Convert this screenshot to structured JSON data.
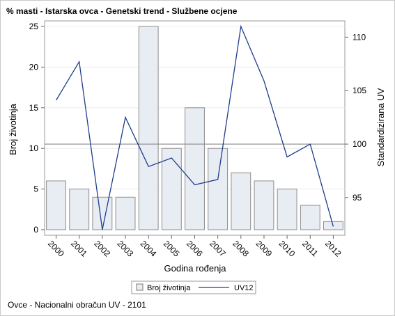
{
  "chart_data": {
    "type": "bar",
    "title": "% masti - Istarska ovca - Genetski trend - Službene ocjene",
    "xlabel": "Godina rođenja",
    "ylabel": "Broj životinja",
    "y2label": "Standardizirana UV",
    "categories": [
      "2000",
      "2001",
      "2002",
      "2003",
      "2004",
      "2005",
      "2006",
      "2007",
      "2008",
      "2009",
      "2010",
      "2011",
      "2012"
    ],
    "series": [
      {
        "name": "Broj životinja",
        "type": "bar",
        "axis": "left",
        "color": "#e8ecf3",
        "values": [
          6,
          5,
          4,
          4,
          25,
          10,
          15,
          10,
          7,
          6,
          5,
          3,
          1
        ]
      },
      {
        "name": "UV12",
        "type": "line",
        "axis": "right",
        "color": "#1f3d8c",
        "values": [
          104.1,
          107.7,
          92.0,
          102.5,
          97.9,
          98.7,
          96.2,
          96.7,
          111.0,
          105.9,
          98.8,
          100.0,
          92.3
        ]
      }
    ],
    "ylim": [
      0,
      25
    ],
    "yticks": [
      0,
      5,
      10,
      15,
      20,
      25
    ],
    "y2lim": [
      92.0,
      111.0
    ],
    "y2ticks": [
      95,
      100,
      105,
      110
    ],
    "reference_line": 100,
    "legend_position": "bottom",
    "footnote": "Ovce - Nacionalni obračun UV - 2101"
  }
}
